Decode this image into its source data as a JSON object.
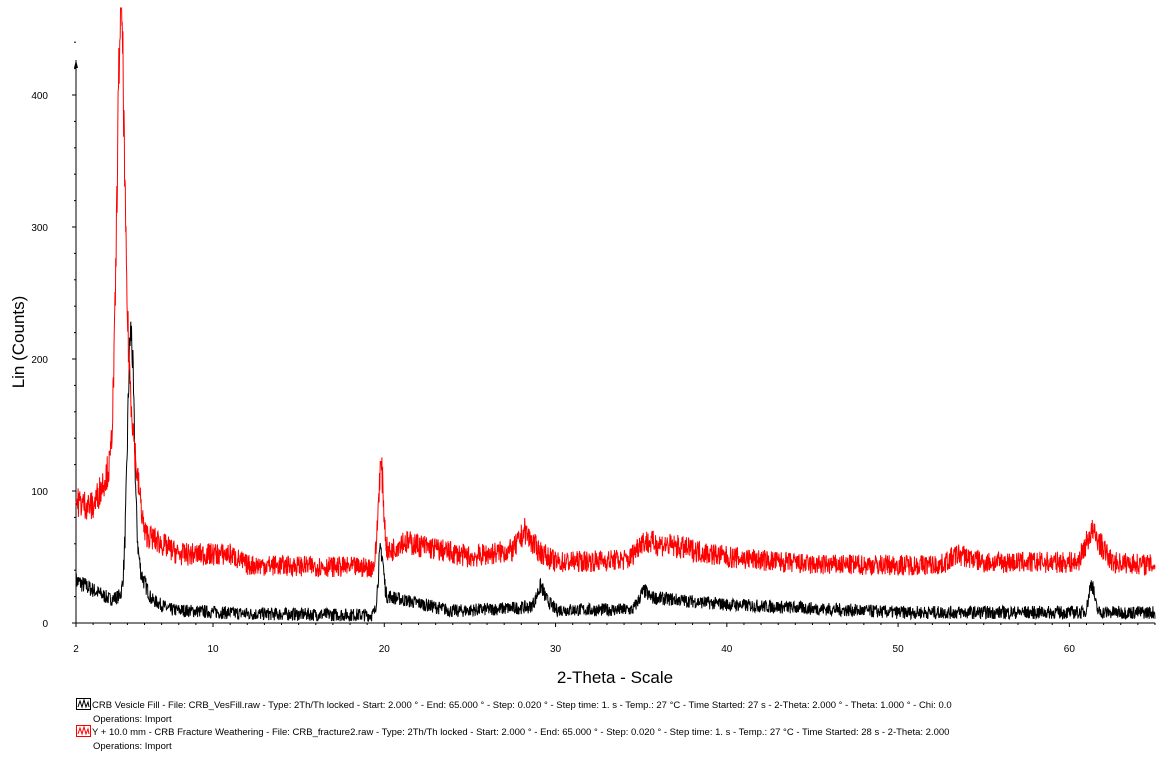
{
  "chart_data": {
    "type": "line",
    "xlabel": "2-Theta - Scale",
    "ylabel": "Lin (Counts)",
    "xlim": [
      2,
      65
    ],
    "ylim": [
      0,
      460
    ],
    "x_ticks": [
      "2",
      "10",
      "20",
      "30",
      "40",
      "50",
      "60"
    ],
    "y_ticks": [
      "0",
      "100",
      "200",
      "300",
      "400"
    ],
    "grid": false,
    "legend_placement": "bottom",
    "series": [
      {
        "name": "CRB Vesicle Fill",
        "color": "#000000",
        "baseline_y": [
          [
            2,
            32
          ],
          [
            4,
            18
          ],
          [
            5,
            22
          ],
          [
            5.7,
            40
          ],
          [
            6.4,
            18
          ],
          [
            7.5,
            10
          ],
          [
            12,
            7
          ],
          [
            19.5,
            6
          ],
          [
            20.3,
            20
          ],
          [
            24,
            9
          ],
          [
            28.5,
            12
          ],
          [
            29.2,
            22
          ],
          [
            30,
            10
          ],
          [
            34.5,
            10
          ],
          [
            35,
            20
          ],
          [
            40,
            14
          ],
          [
            50,
            8
          ],
          [
            60.5,
            8
          ],
          [
            62,
            8
          ],
          [
            65,
            8
          ]
        ],
        "peaks": [
          {
            "x": 5.2,
            "y": 220
          },
          {
            "x": 19.8,
            "y": 55
          },
          {
            "x": 29.1,
            "y": 27
          },
          {
            "x": 35.2,
            "y": 24
          },
          {
            "x": 61.3,
            "y": 30
          }
        ]
      },
      {
        "name": "Y + 10.0 mm - CRB Fracture Weathering",
        "color": "#ff0000",
        "baseline_y": [
          [
            2,
            92
          ],
          [
            3,
            88
          ],
          [
            4,
            120
          ],
          [
            4.7,
            260
          ],
          [
            5.5,
            120
          ],
          [
            6,
            68
          ],
          [
            8,
            52
          ],
          [
            11,
            52
          ],
          [
            12,
            44
          ],
          [
            19.4,
            42
          ],
          [
            21,
            62
          ],
          [
            25,
            50
          ],
          [
            27.5,
            55
          ],
          [
            28.2,
            68
          ],
          [
            29,
            55
          ],
          [
            30,
            46
          ],
          [
            34.3,
            48
          ],
          [
            35,
            62
          ],
          [
            37,
            58
          ],
          [
            40,
            50
          ],
          [
            45,
            44
          ],
          [
            52.5,
            44
          ],
          [
            53.5,
            52
          ],
          [
            55,
            46
          ],
          [
            60.5,
            46
          ],
          [
            61.3,
            70
          ],
          [
            62.5,
            46
          ],
          [
            65,
            44
          ]
        ],
        "peaks": [
          {
            "x": 4.6,
            "y": 460
          },
          {
            "x": 19.8,
            "y": 118
          },
          {
            "x": 28.2,
            "y": 70
          },
          {
            "x": 61.3,
            "y": 70
          }
        ]
      }
    ]
  },
  "legend": [
    {
      "line1": "CRB Vesicle Fill - File: CRB_VesFill.raw - Type: 2Th/Th locked - Start: 2.000 ° - End: 65.000 ° - Step: 0.020 ° - Step time: 1. s - Temp.: 27 °C - Time Started: 27 s - 2-Theta: 2.000 ° - Theta: 1.000 ° - Chi: 0.0",
      "line2": "Operations: Import",
      "color": "#000000"
    },
    {
      "line1": "Y + 10.0 mm - CRB Fracture Weathering - File: CRB_fracture2.raw - Type: 2Th/Th locked - Start: 2.000 ° - End: 65.000 ° - Step: 0.020 ° - Step time: 1. s - Temp.: 27 °C - Time Started: 28 s - 2-Theta: 2.000",
      "line2": "Operations: Import",
      "color": "#ff0000"
    }
  ]
}
